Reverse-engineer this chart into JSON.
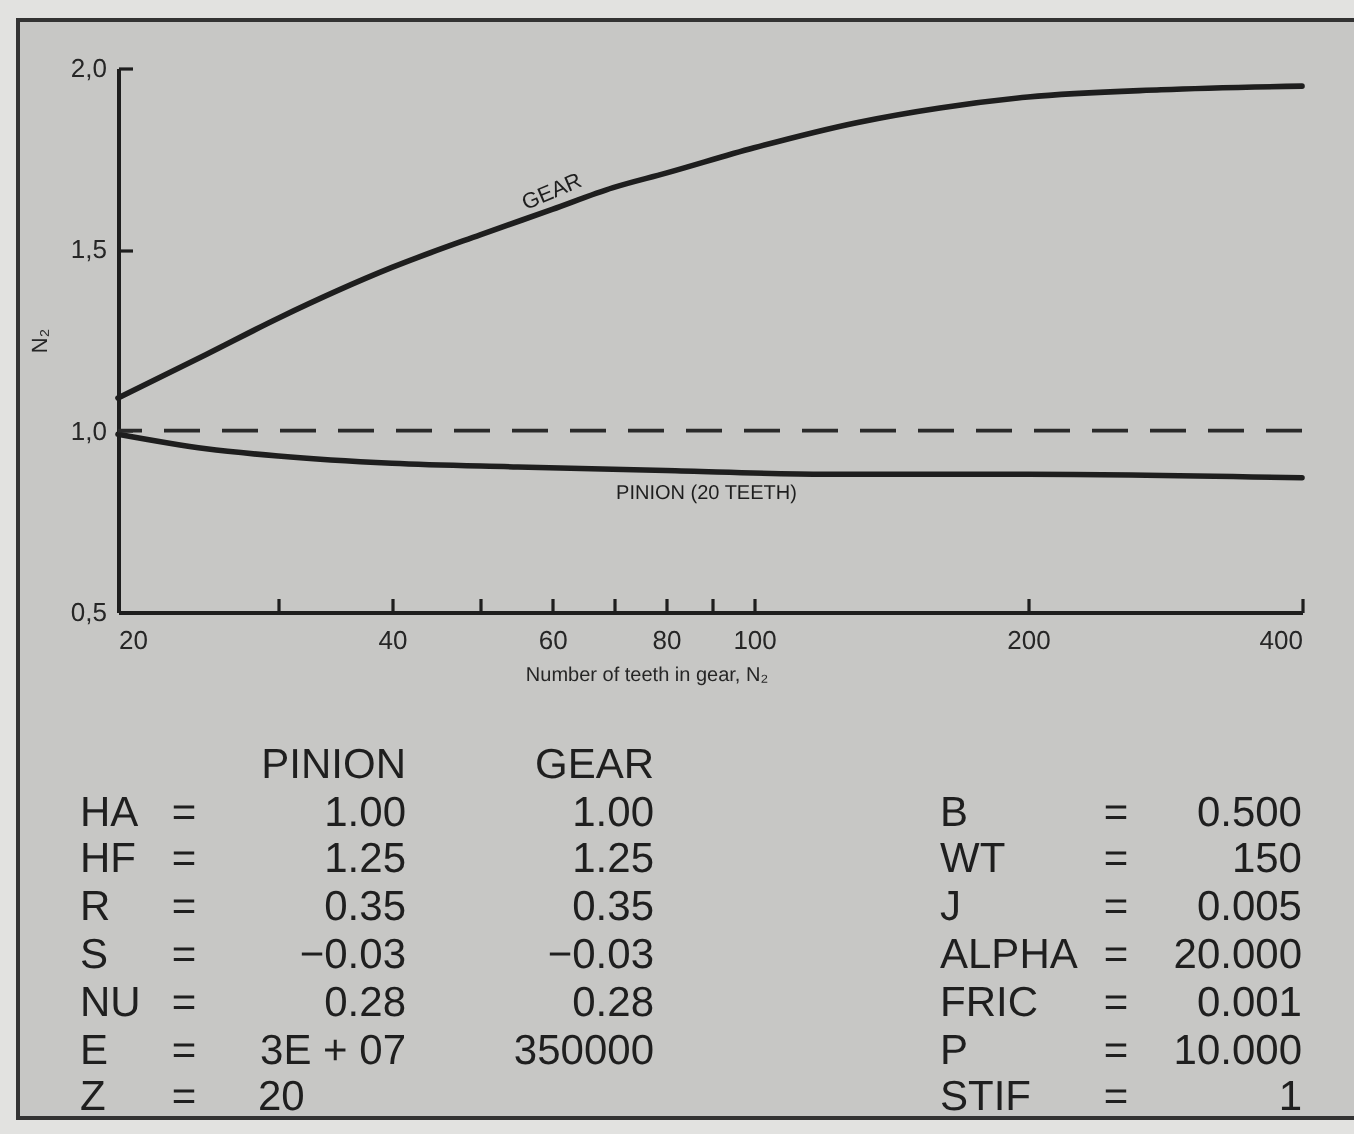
{
  "chart_data": {
    "type": "line",
    "xlabel": "Number of teeth in gear, N₂",
    "ylabel": "N₂",
    "series": [
      {
        "name": "GEAR",
        "color": "#1e1e1e",
        "x": [
          20,
          25,
          30,
          40,
          50,
          60,
          70,
          80,
          100,
          130,
          160,
          200,
          280,
          400
        ],
        "values": [
          1.09,
          1.21,
          1.31,
          1.45,
          1.54,
          1.61,
          1.67,
          1.71,
          1.78,
          1.85,
          1.89,
          1.92,
          1.94,
          1.95
        ]
      },
      {
        "name": "PINION (20 TEETH)",
        "color": "#1e1e1e",
        "x": [
          20,
          25,
          30,
          40,
          55,
          80,
          120,
          200,
          400
        ],
        "values": [
          0.99,
          0.95,
          0.93,
          0.91,
          0.9,
          0.89,
          0.88,
          0.88,
          0.87
        ]
      }
    ],
    "log": "x",
    "xlim": [
      20,
      400
    ],
    "ylim": [
      0.5,
      2.0
    ],
    "xticks": [
      20,
      {
        "value": 30,
        "label": null
      },
      40,
      {
        "value": 50,
        "label": null
      },
      60,
      {
        "value": 70,
        "label": null
      },
      80,
      {
        "value": 90,
        "label": null
      },
      100,
      200,
      400
    ],
    "yticks": [
      {
        "value": 0.5,
        "label": "0,5"
      },
      {
        "value": 1,
        "label": "1,0"
      },
      {
        "value": 1.5,
        "label": "1,5"
      },
      {
        "value": 2,
        "label": "2,0"
      }
    ],
    "ref_lines": [
      {
        "axis": "y",
        "value": 1,
        "line_style": "dashed",
        "color": "#2a2a2a"
      }
    ],
    "line_style": "solid",
    "annotations": [
      "PINION  GEAR",
      "HA  =  1.00  1.00",
      "HF  =  1.25  1.25",
      "R  =  0.35  0.35",
      "S  =  −0.03  −0.03",
      "NU  =  0.28  0.28",
      "E  =  3E + 07  350000",
      "Z  =  20",
      "B  =  0.500",
      "WT  =  150",
      "J  =  0.005",
      "ALPHA  =  20.000",
      "FRIC  =  0.001",
      "P  =  10.000",
      "STIF  =  1"
    ]
  }
}
